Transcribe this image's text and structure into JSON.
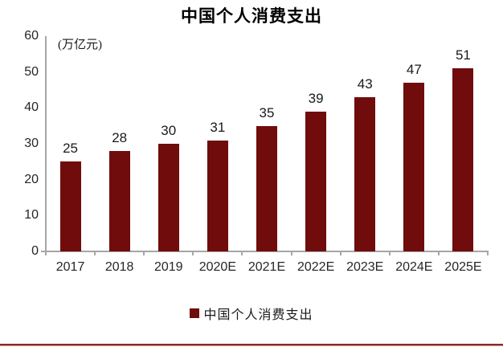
{
  "title": "中国个人消费支出",
  "unit_label": "(万亿元)",
  "legend": {
    "label": "中国个人消费支出"
  },
  "colors": {
    "bar": "#700c0c",
    "axis": "#a6a6a6",
    "text": "#1a1a1a",
    "footer_dark": "#8c2a2b",
    "footer_light": "#c88b8b"
  },
  "chart_data": {
    "type": "bar",
    "title": "中国个人消费支出",
    "categories": [
      "2017",
      "2018",
      "2019",
      "2020E",
      "2021E",
      "2022E",
      "2023E",
      "2024E",
      "2025E"
    ],
    "values": [
      25,
      28,
      30,
      31,
      35,
      39,
      43,
      47,
      51
    ],
    "xlabel": "",
    "ylabel": "(万亿元)",
    "ylim": [
      0,
      60
    ],
    "yticks": [
      0,
      10,
      20,
      30,
      40,
      50,
      60
    ],
    "grid": false,
    "data_labels": true,
    "legend_entries": [
      "中国个人消费支出"
    ],
    "legend_position": "bottom",
    "bar_color": "#700c0c"
  }
}
